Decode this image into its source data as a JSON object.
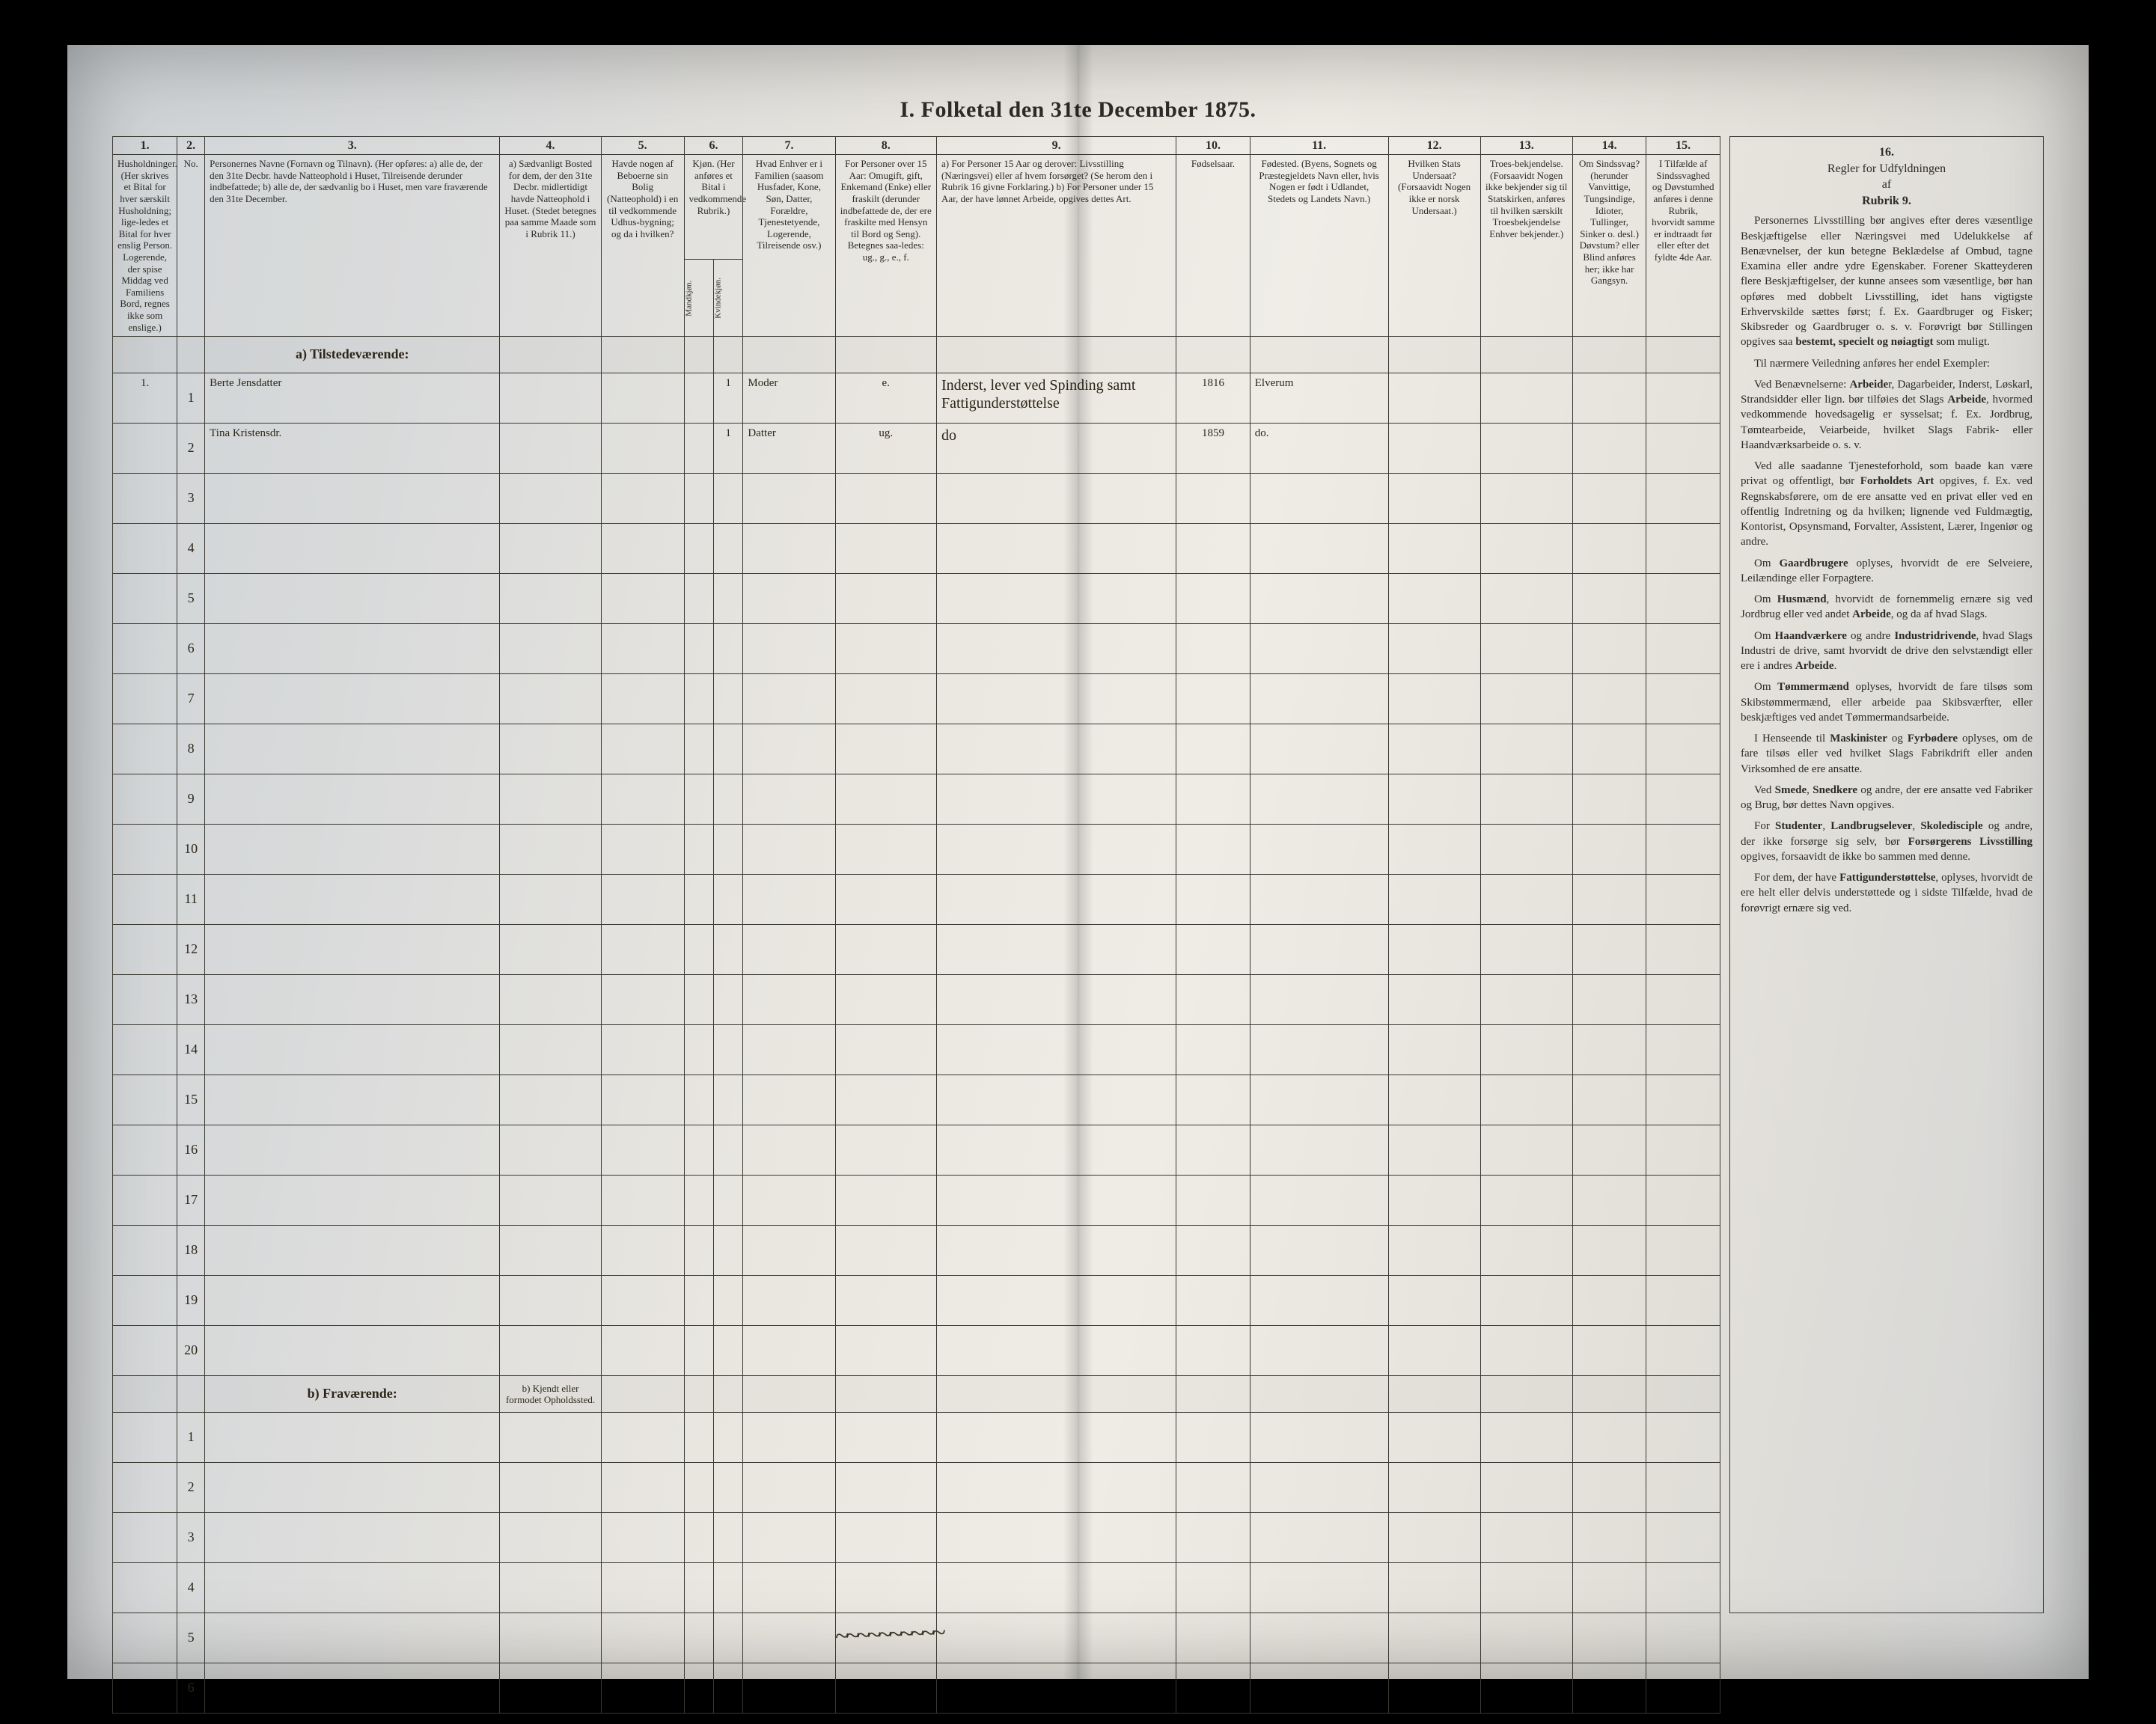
{
  "title": "I. Folketal den 31te December 1875.",
  "column_numbers": [
    "1.",
    "2.",
    "3.",
    "4.",
    "5.",
    "6.",
    "7.",
    "8.",
    "9.",
    "10.",
    "11.",
    "12.",
    "13.",
    "14.",
    "15.",
    "16."
  ],
  "headers": {
    "c1": "Husholdninger. (Her skrives et Bital for hver særskilt Husholdning; lige-ledes et Bital for hver enslig Person. Logerende, der spise Middag ved Familiens Bord, regnes ikke som enslige.)",
    "c2": "No.",
    "c3": "Personernes Navne (Fornavn og Tilnavn).\n(Her opføres:\na) alle de, der den 31te Decbr. havde Natteophold i Huset, Tilreisende derunder indbefattede;\nb) alle de, der sædvanlig bo i Huset, men vare fraværende den 31te December.",
    "c4": "a) Sædvanligt Bosted for dem, der den 31te Decbr. midlertidigt havde Natteophold i Huset. (Stedet betegnes paa samme Maade som i Rubrik 11.)",
    "c5": "Havde nogen af Beboerne sin Bolig (Natteophold) i en til vedkommende Udhus-bygning; og da i hvilken?",
    "c6": "Kjøn. (Her anføres et Bital i vedkommende Rubrik.)",
    "c6a": "Mandkjøn.",
    "c6b": "Kvindekjøn.",
    "c7": "Hvad Enhver er i Familien (saasom Husfader, Kone, Søn, Datter, Forældre, Tjenestetyende, Logerende, Tilreisende osv.)",
    "c8": "For Personer over 15 Aar: Omugift, gift, Enkemand (Enke) eller fraskilt (derunder indbefattede de, der ere fraskilte med Hensyn til Bord og Seng). Betegnes saa-ledes: ug., g., e., f.",
    "c9": "a) For Personer 15 Aar og derover: Livsstilling (Næringsvei) eller af hvem forsørget? (Se herom den i Rubrik 16 givne Forklaring.)\nb) For Personer under 15 Aar, der have lønnet Arbeide, opgives dettes Art.",
    "c10": "Fødselsaar.",
    "c11": "Fødested. (Byens, Sognets og Præstegjeldets Navn eller, hvis Nogen er født i Udlandet, Stedets og Landets Navn.)",
    "c12": "Hvilken Stats Undersaat? (Forsaavidt Nogen ikke er norsk Undersaat.)",
    "c13": "Troes-bekjendelse. (Forsaavidt Nogen ikke bekjender sig til Statskirken, anføres til hvilken særskilt Troesbekjendelse Enhver bekjender.)",
    "c14": "Om Sindssvag? (herunder Vanvittige, Tungsindige, Idioter, Tullinger, Sinker o. desl.) Døvstum? eller Blind anføres her; ikke har Gangsyn.",
    "c15": "I Tilfælde af Sindssvaghed og Døvstumhed anføres i denne Rubrik, hvorvidt samme er indtraadt før eller efter det fyldte 4de Aar.",
    "c16": "Regler for Udfyldningen af Rubrik 9."
  },
  "section_a": "a) Tilstedeværende:",
  "section_b": "b) Fraværende:",
  "section_b_col4": "b) Kjendt eller formodet Opholdssted.",
  "household_mark": "1.",
  "rows_a": [
    {
      "no": "1",
      "name": "Berte Jensdatter",
      "c4": "",
      "c5": "",
      "mk": "",
      "kv": "1",
      "fam": "Moder",
      "civ": "e.",
      "occ": "Inderst, lever ved Spinding samt Fattigunderstøttelse",
      "year": "1816",
      "place": "Elverum",
      "c12": "",
      "c13": "",
      "c14": "",
      "c15": ""
    },
    {
      "no": "2",
      "name": "Tina Kristensdr.",
      "c4": "",
      "c5": "",
      "mk": "",
      "kv": "1",
      "fam": "Datter",
      "civ": "ug.",
      "occ": "do",
      "year": "1859",
      "place": "do.",
      "c12": "",
      "c13": "",
      "c14": "",
      "c15": ""
    },
    {
      "no": "3"
    },
    {
      "no": "4"
    },
    {
      "no": "5"
    },
    {
      "no": "6"
    },
    {
      "no": "7"
    },
    {
      "no": "8"
    },
    {
      "no": "9"
    },
    {
      "no": "10"
    },
    {
      "no": "11"
    },
    {
      "no": "12"
    },
    {
      "no": "13"
    },
    {
      "no": "14"
    },
    {
      "no": "15"
    },
    {
      "no": "16"
    },
    {
      "no": "17"
    },
    {
      "no": "18"
    },
    {
      "no": "19"
    },
    {
      "no": "20"
    }
  ],
  "rows_b": [
    {
      "no": "1"
    },
    {
      "no": "2"
    },
    {
      "no": "3"
    },
    {
      "no": "4"
    },
    {
      "no": "5"
    },
    {
      "no": "6"
    }
  ],
  "rules": {
    "heading1": "Regler for Udfyldningen",
    "heading2": "af",
    "heading3": "Rubrik 9.",
    "paras": [
      "Personernes Livsstilling bør angives efter deres væsentlige Beskjæftigelse eller Næringsvei med Udelukkelse af Benævnelser, der kun betegne Beklædelse af Ombud, tagne Examina eller andre ydre Egenskaber. Forener Skatteyderen flere Beskjæftigelser, der kunne ansees som væsentlige, bør han opføres med dobbelt Livsstilling, idet hans vigtigste Erhvervskilde sættes først; f. Ex. Gaardbruger og Fisker; Skibsreder og Gaardbruger o. s. v. Forøvrigt bør Stillingen opgives saa bestemt, specielt og nøiagtigt som muligt.",
      "Til nærmere Veiledning anføres her endel Exempler:",
      "Ved Benævnelserne: Arbeider, Dagarbeider, Inderst, Løskarl, Strandsidder eller lign. bør tilføies det Slags Arbeide, hvormed vedkommende hovedsagelig er sysselsat; f. Ex. Jordbrug, Tømtearbeide, Veiarbeide, hvilket Slags Fabrik- eller Haandværksarbeide o. s. v.",
      "Ved alle saadanne Tjenesteforhold, som baade kan være privat og offentligt, bør Forholdets Art opgives, f. Ex. ved Regnskabsførere, om de ere ansatte ved en privat eller ved en offentlig Indretning og da hvilken; lignende ved Fuldmægtig, Kontorist, Opsynsmand, Forvalter, Assistent, Lærer, Ingeniør og andre.",
      "Om Gaardbrugere oplyses, hvorvidt de ere Selveiere, Leilændinge eller Forpagtere.",
      "Om Husmænd, hvorvidt de fornemmelig ernære sig ved Jordbrug eller ved andet Arbeide, og da af hvad Slags.",
      "Om Haandværkere og andre Industridrivende, hvad Slags Industri de drive, samt hvorvidt de drive den selvstændigt eller ere i andres Arbeide.",
      "Om Tømmermænd oplyses, hvorvidt de fare tilsøs som Skibstømmermænd, eller arbeide paa Skibsværfter, eller beskjæftiges ved andet Tømmermandsarbeide.",
      "I Henseende til Maskinister og Fyrbødere oplyses, om de fare tilsøs eller ved hvilket Slags Fabrikdrift eller anden Virksomhed de ere ansatte.",
      "Ved Smede, Snedkere og andre, der ere ansatte ved Fabriker og Brug, bør dettes Navn opgives.",
      "For Studenter, Landbrugselever, Skoledisciple og andre, der ikke forsørge sig selv, bør Forsørgerens Livsstilling opgives, forsaavidt de ikke bo sammen med denne.",
      "For dem, der have Fattigunderstøttelse, oplyses, hvorvidt de ere helt eller delvis understøttede og i sidste Tilfælde, hvad de forøvrigt ernære sig ved."
    ]
  },
  "squiggle": "~~~~~~~~~~"
}
